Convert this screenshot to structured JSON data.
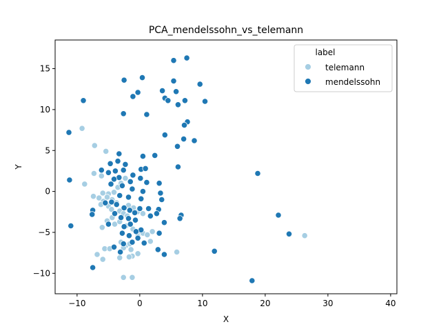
{
  "chart_data": {
    "type": "scatter",
    "title": "PCA_mendelssohn_vs_telemann",
    "xlabel": "X",
    "ylabel": "Y",
    "xlim": [
      -13.5,
      41
    ],
    "ylim": [
      -12.5,
      18.5
    ],
    "xticks": [
      -10,
      0,
      10,
      20,
      30,
      40
    ],
    "yticks": [
      -10,
      -5,
      0,
      5,
      10,
      15
    ],
    "grid": false,
    "legend": {
      "title": "label",
      "placement": "top-right"
    },
    "series": [
      {
        "name": "telemann",
        "color": "#a6cee3",
        "points": [
          [
            -9.2,
            7.7
          ],
          [
            -7.2,
            5.6
          ],
          [
            -5.4,
            4.9
          ],
          [
            -7.3,
            2.2
          ],
          [
            -8.8,
            0.9
          ],
          [
            -6.1,
            1.9
          ],
          [
            -5.9,
            -0.2
          ],
          [
            -5.0,
            -0.3
          ],
          [
            -4.1,
            -0.1
          ],
          [
            -3.5,
            0.5
          ],
          [
            -3.0,
            1.0
          ],
          [
            -2.3,
            1.6
          ],
          [
            -6.5,
            -0.8
          ],
          [
            -5.8,
            -1.2
          ],
          [
            -5.2,
            -0.7
          ],
          [
            -4.4,
            -1.0
          ],
          [
            -3.7,
            -1.4
          ],
          [
            -7.4,
            -0.6
          ],
          [
            -6.2,
            -1.6
          ],
          [
            -5.0,
            -1.8
          ],
          [
            -4.5,
            -2.2
          ],
          [
            -3.2,
            -2.4
          ],
          [
            -2.6,
            -2.7
          ],
          [
            -1.8,
            -1.7
          ],
          [
            -1.0,
            -2.0
          ],
          [
            -0.4,
            -2.5
          ],
          [
            0.5,
            -2.7
          ],
          [
            -6.0,
            -4.4
          ],
          [
            -5.2,
            -3.6
          ],
          [
            -4.0,
            -4.0
          ],
          [
            -3.2,
            -3.7
          ],
          [
            -2.2,
            -4.2
          ],
          [
            -1.1,
            -4.6
          ],
          [
            0.0,
            -4.9
          ],
          [
            0.5,
            -5.1
          ],
          [
            -0.3,
            -5.5
          ],
          [
            1.2,
            -5.3
          ],
          [
            2.0,
            -4.9
          ],
          [
            -3.0,
            -6.2
          ],
          [
            -2.2,
            -6.6
          ],
          [
            -1.6,
            -6.4
          ],
          [
            -2.6,
            -6.9
          ],
          [
            -1.4,
            -7.1
          ],
          [
            -0.3,
            -7.6
          ],
          [
            -1.2,
            -7.9
          ],
          [
            -1.7,
            -8.0
          ],
          [
            -3.2,
            -8.1
          ],
          [
            -5.6,
            -7.0
          ],
          [
            -4.8,
            -7.0
          ],
          [
            -6.8,
            -7.7
          ],
          [
            -5.9,
            -8.3
          ],
          [
            1.7,
            -6.1
          ],
          [
            5.9,
            -7.4
          ],
          [
            -2.6,
            -10.5
          ],
          [
            -1.2,
            -10.5
          ],
          [
            26.3,
            -5.4
          ],
          [
            -4.4,
            -3.2
          ],
          [
            -2.0,
            -3.0
          ]
        ]
      },
      {
        "name": "mendelssohn",
        "color": "#1f78b4",
        "points": [
          [
            5.4,
            16.0
          ],
          [
            7.5,
            16.3
          ],
          [
            -2.5,
            13.6
          ],
          [
            0.4,
            13.9
          ],
          [
            5.4,
            13.5
          ],
          [
            9.6,
            13.1
          ],
          [
            3.6,
            12.3
          ],
          [
            5.8,
            12.2
          ],
          [
            -0.3,
            12.1
          ],
          [
            -1.1,
            11.6
          ],
          [
            4.0,
            11.4
          ],
          [
            -9.0,
            11.1
          ],
          [
            4.5,
            11.1
          ],
          [
            7.2,
            11.1
          ],
          [
            10.4,
            11.0
          ],
          [
            6.1,
            10.6
          ],
          [
            -2.6,
            9.5
          ],
          [
            1.1,
            9.4
          ],
          [
            7.6,
            8.5
          ],
          [
            7.1,
            8.1
          ],
          [
            4.0,
            6.9
          ],
          [
            7.0,
            6.4
          ],
          [
            8.7,
            6.2
          ],
          [
            6.0,
            5.5
          ],
          [
            -11.3,
            7.2
          ],
          [
            -3.3,
            4.6
          ],
          [
            -3.5,
            3.7
          ],
          [
            -4.7,
            3.4
          ],
          [
            -2.3,
            3.3
          ],
          [
            0.5,
            4.3
          ],
          [
            2.4,
            4.4
          ],
          [
            6.1,
            3.0
          ],
          [
            -3.9,
            2.5
          ],
          [
            -5.0,
            2.3
          ],
          [
            -2.6,
            2.6
          ],
          [
            -6.1,
            2.6
          ],
          [
            -1.1,
            2.0
          ],
          [
            0.2,
            2.7
          ],
          [
            0.9,
            2.8
          ],
          [
            -3.3,
            1.7
          ],
          [
            -4.1,
            1.5
          ],
          [
            -1.5,
            1.2
          ],
          [
            0.1,
            1.6
          ],
          [
            1.1,
            1.1
          ],
          [
            3.1,
            1.0
          ],
          [
            -11.2,
            1.4
          ],
          [
            -4.6,
            0.9
          ],
          [
            -2.8,
            0.7
          ],
          [
            -1.2,
            0.3
          ],
          [
            0.5,
            0.0
          ],
          [
            3.3,
            -0.2
          ],
          [
            -3.2,
            -0.5
          ],
          [
            -1.8,
            -0.7
          ],
          [
            0.2,
            -0.9
          ],
          [
            3.5,
            -1.0
          ],
          [
            -7.5,
            -2.3
          ],
          [
            -7.6,
            -2.8
          ],
          [
            -4.5,
            -1.3
          ],
          [
            -3.7,
            -1.6
          ],
          [
            -5.5,
            -1.4
          ],
          [
            -2.5,
            -2.0
          ],
          [
            -1.6,
            -2.3
          ],
          [
            -0.8,
            -2.6
          ],
          [
            0.0,
            -2.1
          ],
          [
            1.4,
            -2.1
          ],
          [
            3.0,
            -2.2
          ],
          [
            -4.0,
            -2.7
          ],
          [
            -3.0,
            -3.2
          ],
          [
            -1.8,
            -3.3
          ],
          [
            -0.7,
            -3.5
          ],
          [
            1.7,
            -3.0
          ],
          [
            2.7,
            -2.7
          ],
          [
            -1.5,
            -4.0
          ],
          [
            -2.5,
            -4.3
          ],
          [
            0.2,
            -4.7
          ],
          [
            -0.6,
            -4.9
          ],
          [
            -2.8,
            -5.1
          ],
          [
            -1.7,
            -5.4
          ],
          [
            3.1,
            -5.1
          ],
          [
            3.9,
            -3.8
          ],
          [
            6.6,
            -2.9
          ],
          [
            6.4,
            -3.3
          ],
          [
            -3.1,
            -7.4
          ],
          [
            -2.6,
            -6.4
          ],
          [
            -4.1,
            -6.8
          ],
          [
            -1.2,
            -6.2
          ],
          [
            0.7,
            -6.3
          ],
          [
            2.9,
            -7.1
          ],
          [
            3.9,
            -7.7
          ],
          [
            -7.5,
            -9.3
          ],
          [
            -11.0,
            -4.2
          ],
          [
            18.8,
            2.2
          ],
          [
            22.1,
            -2.9
          ],
          [
            23.8,
            -5.2
          ],
          [
            11.9,
            -7.3
          ],
          [
            17.9,
            -10.9
          ],
          [
            -5.0,
            -4.0
          ],
          [
            -0.3,
            -5.7
          ]
        ]
      }
    ]
  }
}
